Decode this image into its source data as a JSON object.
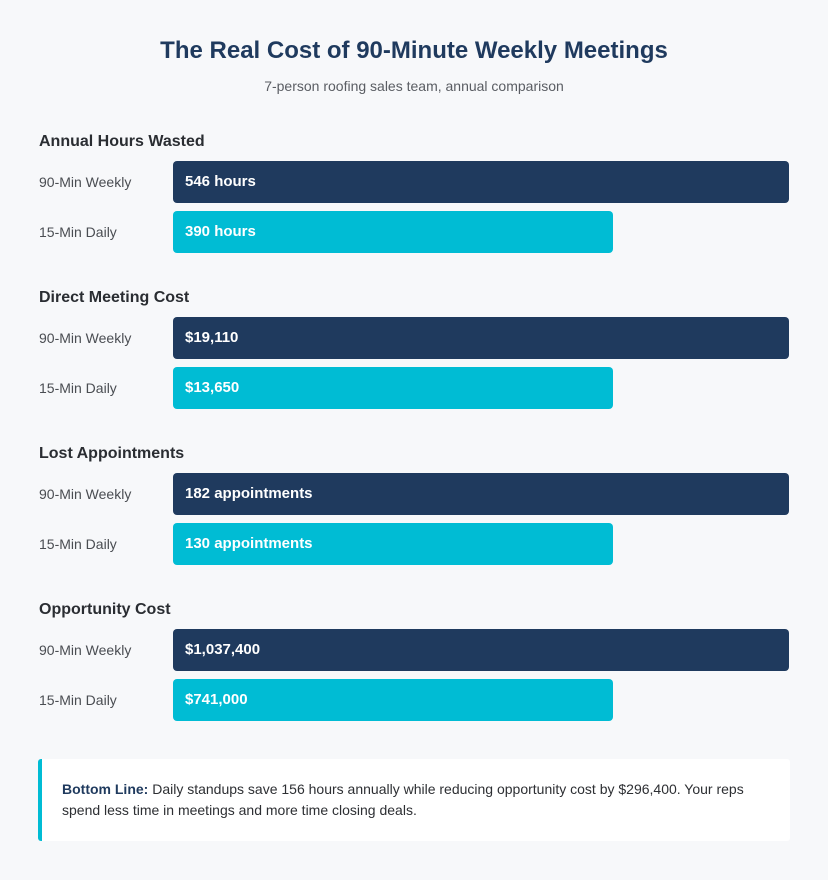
{
  "title": "The Real Cost of 90-Minute Weekly Meetings",
  "subtitle": "7-person roofing sales team, annual comparison",
  "colors": {
    "weekly": "#1f3a5e",
    "daily": "#00bcd4"
  },
  "chart_data": {
    "type": "bar",
    "series_names": [
      "90-Min Weekly",
      "15-Min Daily"
    ],
    "groups": [
      {
        "title": "Annual Hours Wasted",
        "rows": [
          {
            "label": "90-Min Weekly",
            "value": 546,
            "display": "546 hours",
            "kind": "weekly"
          },
          {
            "label": "15-Min Daily",
            "value": 390,
            "display": "390 hours",
            "kind": "daily"
          }
        ]
      },
      {
        "title": "Direct Meeting Cost",
        "rows": [
          {
            "label": "90-Min Weekly",
            "value": 19110,
            "display": "$19,110",
            "kind": "weekly"
          },
          {
            "label": "15-Min Daily",
            "value": 13650,
            "display": "$13,650",
            "kind": "daily"
          }
        ]
      },
      {
        "title": "Lost Appointments",
        "rows": [
          {
            "label": "90-Min Weekly",
            "value": 182,
            "display": "182 appointments",
            "kind": "weekly"
          },
          {
            "label": "15-Min Daily",
            "value": 130,
            "display": "130 appointments",
            "kind": "daily"
          }
        ]
      },
      {
        "title": "Opportunity Cost",
        "rows": [
          {
            "label": "90-Min Weekly",
            "value": 1037400,
            "display": "$1,037,400",
            "kind": "weekly"
          },
          {
            "label": "15-Min Daily",
            "value": 741000,
            "display": "$741,000",
            "kind": "daily"
          }
        ]
      }
    ]
  },
  "callout": {
    "lead": "Bottom Line:",
    "text": " Daily standups save 156 hours annually while reducing opportunity cost by $296,400. Your reps spend less time in meetings and more time closing deals."
  }
}
